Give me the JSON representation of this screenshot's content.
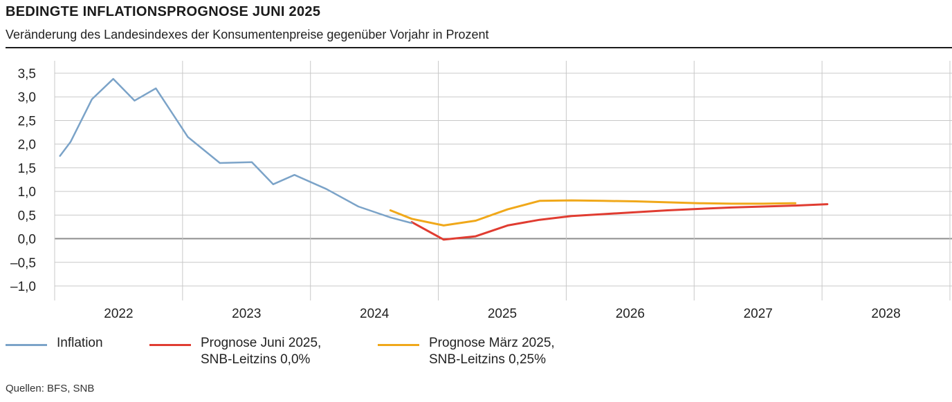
{
  "header": {
    "title": "BEDINGTE INFLATIONSPROGNOSE JUNI 2025",
    "subtitle": "Veränderung des Landesindexes der Konsumentenpreise gegenüber Vorjahr in Prozent"
  },
  "source": "Quellen: BFS, SNB",
  "legend": [
    {
      "line1": "Inflation",
      "line2": ""
    },
    {
      "line1": "Prognose Juni 2025,",
      "line2": "SNB-Leitzins 0,0%"
    },
    {
      "line1": "Prognose März 2025,",
      "line2": "SNB-Leitzins 0,25%"
    }
  ],
  "chart_data": {
    "type": "line",
    "title": "BEDINGTE INFLATIONSPROGNOSE JUNI 2025",
    "subtitle": "Veränderung des Landesindexes der Konsumentenpreise gegenüber Vorjahr in Prozent",
    "xlabel": "",
    "ylabel": "",
    "xlim": [
      "2022-01",
      "2028-12"
    ],
    "ylim": [
      -1.0,
      3.5
    ],
    "y_ticks": [
      "3,5",
      "3,0",
      "2,5",
      "2,0",
      "1,5",
      "1,0",
      "0,5",
      "0,0",
      "–0,5",
      "–1,0"
    ],
    "y_tick_values": [
      3.5,
      3.0,
      2.5,
      2.0,
      1.5,
      1.0,
      0.5,
      0.0,
      -0.5,
      -1.0
    ],
    "x_ticks": [
      "2022",
      "2023",
      "2024",
      "2025",
      "2026",
      "2027",
      "2028"
    ],
    "grid": true,
    "legend_position": "bottom",
    "colors": {
      "inflation": "#7ba3c8",
      "june": "#e03c31",
      "march": "#f0a81a",
      "grid": "#c8c8c8",
      "zero": "#8c8c8c"
    },
    "series": [
      {
        "name": "Inflation",
        "color": "#7ba3c8",
        "x": [
          "2022-01",
          "2022-02",
          "2022-04",
          "2022-06",
          "2022-08",
          "2022-10",
          "2023-01",
          "2023-04",
          "2023-07",
          "2023-09",
          "2023-11",
          "2024-02",
          "2024-05",
          "2024-08",
          "2024-10"
        ],
        "values": [
          1.75,
          2.05,
          2.95,
          3.38,
          2.92,
          3.18,
          2.15,
          1.6,
          1.62,
          1.15,
          1.35,
          1.05,
          0.68,
          0.45,
          0.33
        ]
      },
      {
        "name": "Prognose Juni 2025, SNB-Leitzins 0,0%",
        "color": "#e03c31",
        "x": [
          "2024-10",
          "2025-01",
          "2025-04",
          "2025-07",
          "2025-10",
          "2026-01",
          "2026-04",
          "2026-07",
          "2026-10",
          "2027-01",
          "2027-04",
          "2027-07",
          "2027-10",
          "2028-01"
        ],
        "values": [
          0.35,
          -0.02,
          0.05,
          0.28,
          0.4,
          0.48,
          0.52,
          0.56,
          0.6,
          0.63,
          0.66,
          0.68,
          0.7,
          0.73
        ]
      },
      {
        "name": "Prognose März 2025, SNB-Leitzins 0,25%",
        "color": "#f0a81a",
        "x": [
          "2024-08",
          "2024-10",
          "2025-01",
          "2025-04",
          "2025-07",
          "2025-10",
          "2026-01",
          "2026-04",
          "2026-07",
          "2026-10",
          "2027-01",
          "2027-04",
          "2027-07",
          "2027-10"
        ],
        "values": [
          0.6,
          0.42,
          0.28,
          0.38,
          0.62,
          0.8,
          0.81,
          0.8,
          0.79,
          0.77,
          0.75,
          0.74,
          0.74,
          0.75
        ]
      }
    ]
  }
}
